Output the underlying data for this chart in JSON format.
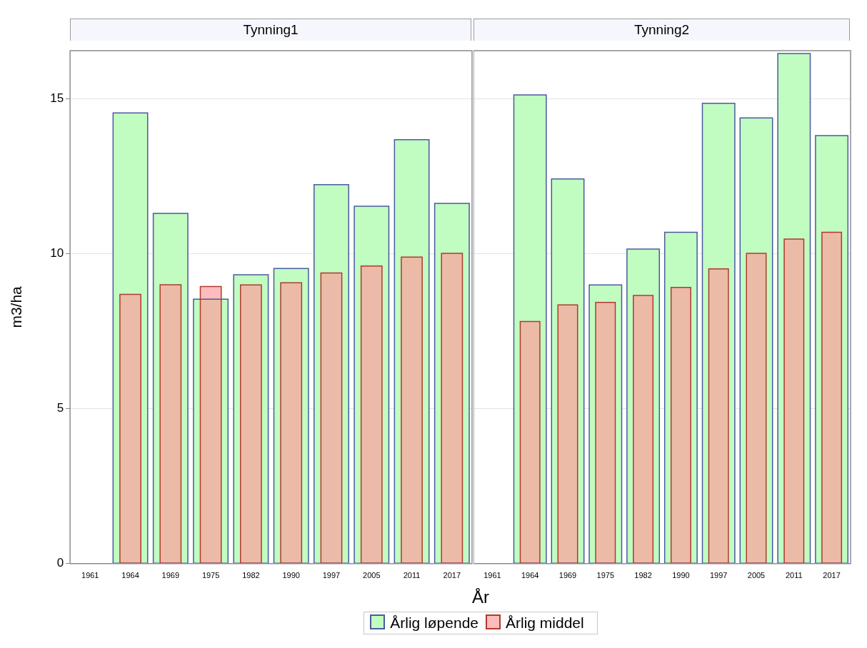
{
  "chart_data": [
    {
      "type": "bar",
      "title": "Tynning1",
      "xlabel": "År",
      "ylabel": "m3/ha",
      "categories": [
        "1961",
        "1964",
        "1969",
        "1975",
        "1982",
        "1990",
        "1997",
        "2005",
        "2011",
        "2017"
      ],
      "series": [
        {
          "name": "Årlig løpende",
          "color": "#c1fcc1",
          "values": [
            null,
            14.54,
            11.3,
            8.53,
            9.32,
            9.52,
            12.23,
            11.53,
            13.68,
            11.62
          ]
        },
        {
          "name": "Årlig middel",
          "color": "#ffbcbc",
          "values": [
            null,
            8.69,
            9.0,
            8.94,
            8.99,
            9.06,
            9.38,
            9.6,
            9.89,
            10.01
          ]
        }
      ],
      "ylim": [
        0,
        16.55
      ],
      "yticks": [
        0,
        5,
        10,
        15
      ],
      "grid": "y",
      "legend": "bottom"
    },
    {
      "type": "bar",
      "title": "Tynning2",
      "categories": [
        "1961",
        "1964",
        "1969",
        "1975",
        "1982",
        "1990",
        "1997",
        "2005",
        "2011",
        "2017"
      ],
      "series": [
        {
          "color": "#c1fcc1",
          "values": [
            null,
            15.12,
            12.41,
            8.99,
            10.15,
            10.69,
            14.85,
            14.38,
            16.46,
            13.81
          ]
        },
        {
          "color": "#ffbcbc",
          "values": [
            null,
            7.81,
            8.35,
            8.43,
            8.65,
            8.91,
            9.51,
            10.01,
            10.47,
            10.69
          ]
        }
      ],
      "ylim": [
        0,
        16.55
      ],
      "yticks": [
        0,
        5,
        10,
        15
      ],
      "grid": "y",
      "tick_labels": "x"
    }
  ]
}
